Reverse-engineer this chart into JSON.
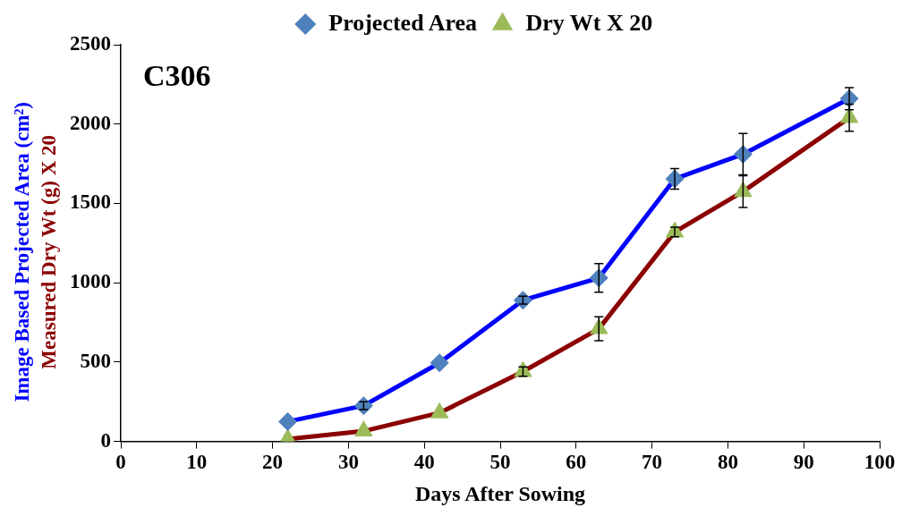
{
  "chart_data": {
    "type": "line",
    "xlabel": "Days After Sowing",
    "ylabel": "Image Based Projected Area (cm²)",
    "y2label": "Measured Dry Wt (g) X 20",
    "annotations": [
      "C306"
    ],
    "x": [
      22,
      32,
      42,
      53,
      63,
      73,
      82,
      96
    ],
    "series": [
      {
        "name": "Projected Area",
        "color": "#0000ff",
        "marker": "diamond",
        "colors": [
          "#4f81bd",
          "#4f81bd",
          "#4f81bd",
          "#4f81bd",
          "#4f81bd",
          "#4f81bd",
          "#4f81bd",
          "#4f81bd"
        ],
        "values": [
          125,
          225,
          495,
          890,
          1030,
          1655,
          1810,
          2160
        ],
        "errors": [
          null,
          25,
          null,
          25,
          90,
          65,
          130,
          70
        ]
      },
      {
        "name": "Dry Wt X 20",
        "color": "#8b0000",
        "marker": "triangle",
        "colors": [
          "#9bbb59",
          "#9bbb59",
          "#9bbb59",
          "#9bbb59",
          "#9bbb59",
          "#9bbb59",
          "#9bbb59",
          "#9bbb59"
        ],
        "values": [
          15,
          65,
          180,
          440,
          710,
          1320,
          1575,
          2040
        ],
        "errors": [
          null,
          null,
          null,
          30,
          75,
          30,
          100,
          85
        ]
      }
    ],
    "xlim": [
      0,
      100
    ],
    "xticks": [
      0,
      10,
      20,
      30,
      40,
      50,
      60,
      70,
      80,
      90,
      100
    ],
    "ylim": [
      0,
      2500
    ],
    "yticks": [
      0,
      500,
      1000,
      1500,
      2000,
      2500
    ],
    "grid": false,
    "legend": "top",
    "line_style": "solid"
  }
}
